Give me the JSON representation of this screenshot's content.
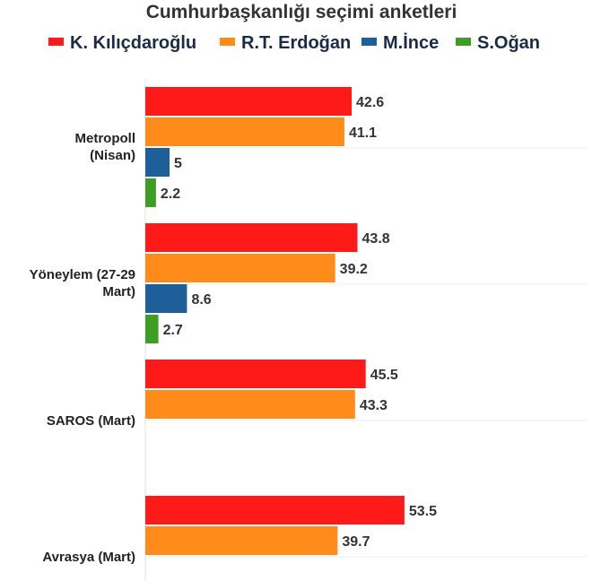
{
  "chart_data": {
    "type": "bar",
    "orientation": "horizontal",
    "title": "Cumhurbaşkanlığı seçimi anketleri",
    "xlabel": "",
    "ylabel": "",
    "xlim": [
      0,
      58
    ],
    "grid": true,
    "legend_position": "top",
    "categories": [
      [
        "Metropoll",
        "(Nisan)"
      ],
      [
        "Yöneylem (27-29",
        "Mart)"
      ],
      [
        "SAROS (Mart)"
      ],
      [
        "Avrasya (Mart)"
      ]
    ],
    "series": [
      {
        "name": "K. Kılıçdaroğlu",
        "color": "#ff1a1a",
        "values": [
          42.6,
          43.8,
          45.5,
          53.5
        ]
      },
      {
        "name": "R.T. Erdoğan",
        "color": "#ff8c1a",
        "values": [
          41.1,
          39.2,
          43.3,
          39.7
        ]
      },
      {
        "name": "M.İnce",
        "color": "#1f5f99",
        "values": [
          5,
          8.6,
          null,
          null
        ]
      },
      {
        "name": "S.Oğan",
        "color": "#3d9e23",
        "values": [
          2.2,
          2.7,
          null,
          null
        ]
      }
    ]
  }
}
